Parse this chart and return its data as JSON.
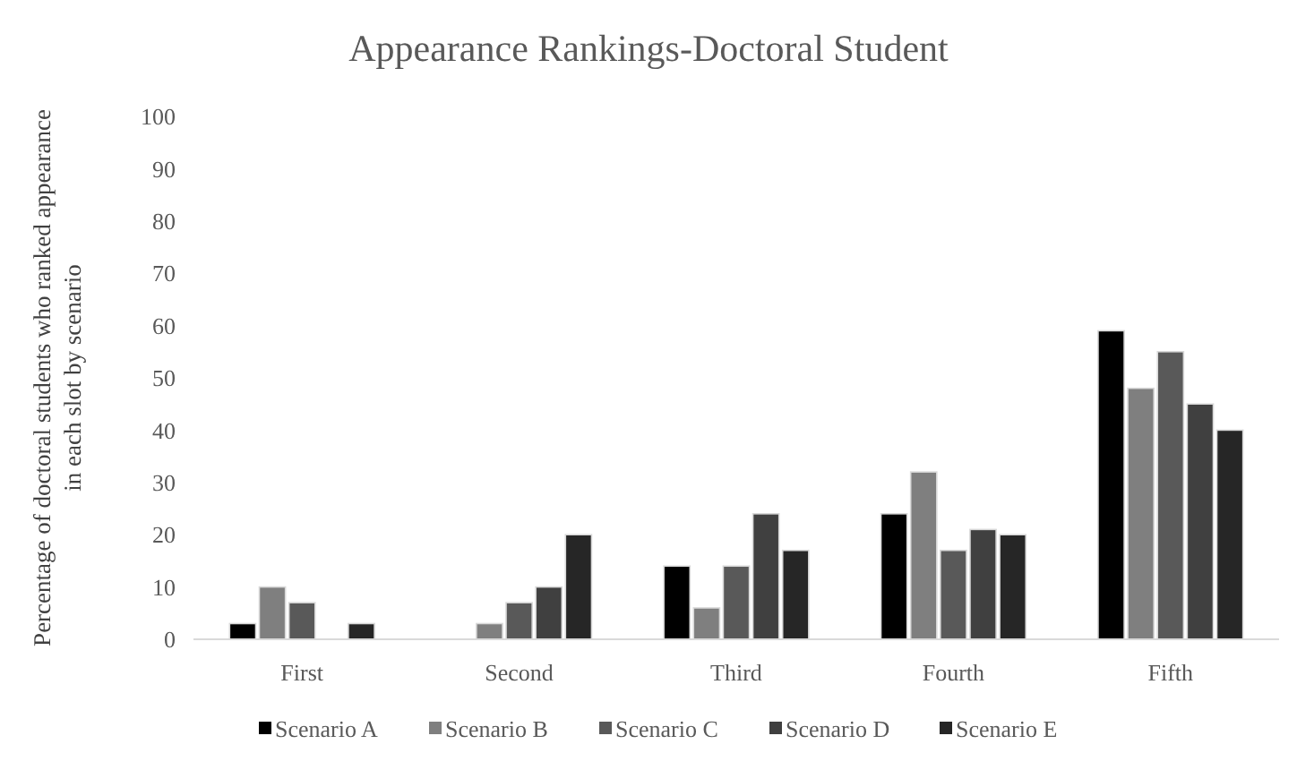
{
  "chart_data": {
    "type": "bar",
    "title": "Appearance Rankings-Doctoral Student",
    "ylabel": "Percentage of doctoral students who ranked appearance in each slot by scenario",
    "categories": [
      "First",
      "Second",
      "Third",
      "Fourth",
      "Fifth"
    ],
    "series": [
      {
        "name": "Scenario A",
        "color": "#000000",
        "values": [
          3,
          0,
          14,
          24,
          59
        ]
      },
      {
        "name": "Scenario B",
        "color": "#7f7f7f",
        "values": [
          10,
          3,
          6,
          32,
          48
        ]
      },
      {
        "name": "Scenario C",
        "color": "#595959",
        "values": [
          7,
          7,
          14,
          17,
          55
        ]
      },
      {
        "name": "Scenario D",
        "color": "#404040",
        "values": [
          0,
          10,
          24,
          21,
          45
        ]
      },
      {
        "name": "Scenario E",
        "color": "#262626",
        "values": [
          3,
          20,
          17,
          20,
          40
        ]
      }
    ],
    "ylim": [
      0,
      100
    ],
    "yticks": [
      0,
      10,
      20,
      30,
      40,
      50,
      60,
      70,
      80,
      90,
      100
    ],
    "grid": false,
    "legend": "bottom"
  }
}
